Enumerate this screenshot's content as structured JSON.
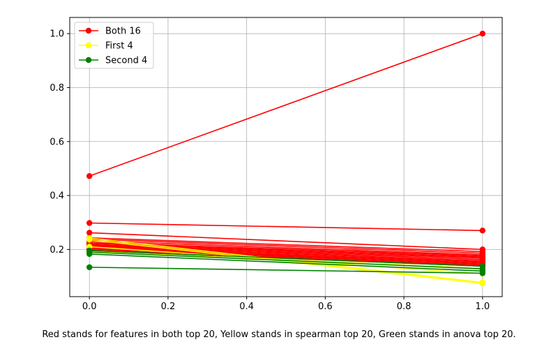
{
  "caption": "Red stands for features in both top 20, Yellow stands in spearman top 20, Green stands in anova top 20.",
  "chart_data": {
    "type": "line",
    "title": "",
    "xlabel": "",
    "ylabel": "",
    "xlim": [
      -0.05,
      1.05
    ],
    "ylim": [
      0.025,
      1.06
    ],
    "x": [
      0,
      1
    ],
    "grid": true,
    "legend_position": "top-left",
    "xticks": [
      "0.0",
      "0.2",
      "0.4",
      "0.6",
      "0.8",
      "1.0"
    ],
    "yticks": [
      "0.2",
      "0.4",
      "0.6",
      "0.8",
      "1.0"
    ],
    "legend": [
      {
        "label": "Both 16",
        "color": "#ff0000"
      },
      {
        "label": "First 4",
        "color": "#ffff00"
      },
      {
        "label": "Second 4",
        "color": "#008000"
      }
    ],
    "series": [
      {
        "group": "Both 16",
        "color": "#ff0000",
        "values": [
          0.472,
          1.0
        ]
      },
      {
        "group": "Both 16",
        "color": "#ff0000",
        "values": [
          0.298,
          0.27
        ]
      },
      {
        "group": "Both 16",
        "color": "#ff0000",
        "values": [
          0.262,
          0.2
        ]
      },
      {
        "group": "Both 16",
        "color": "#ff0000",
        "values": [
          0.243,
          0.192
        ]
      },
      {
        "group": "Both 16",
        "color": "#ff0000",
        "values": [
          0.238,
          0.186
        ]
      },
      {
        "group": "Both 16",
        "color": "#ff0000",
        "values": [
          0.232,
          0.18
        ]
      },
      {
        "group": "Both 16",
        "color": "#ff0000",
        "values": [
          0.226,
          0.176
        ]
      },
      {
        "group": "Both 16",
        "color": "#ff0000",
        "values": [
          0.222,
          0.172
        ]
      },
      {
        "group": "Both 16",
        "color": "#ff0000",
        "values": [
          0.218,
          0.168
        ]
      },
      {
        "group": "Both 16",
        "color": "#ff0000",
        "values": [
          0.215,
          0.163
        ]
      },
      {
        "group": "Both 16",
        "color": "#ff0000",
        "values": [
          0.212,
          0.158
        ]
      },
      {
        "group": "Both 16",
        "color": "#ff0000",
        "values": [
          0.208,
          0.154
        ]
      },
      {
        "group": "Both 16",
        "color": "#ff0000",
        "values": [
          0.205,
          0.15
        ]
      },
      {
        "group": "Both 16",
        "color": "#ff0000",
        "values": [
          0.202,
          0.146
        ]
      },
      {
        "group": "Both 16",
        "color": "#ff0000",
        "values": [
          0.198,
          0.142
        ]
      },
      {
        "group": "Both 16",
        "color": "#ff0000",
        "values": [
          0.195,
          0.138
        ]
      },
      {
        "group": "First 4",
        "color": "#ffff00",
        "values": [
          0.242,
          0.078
        ]
      },
      {
        "group": "First 4",
        "color": "#ffff00",
        "values": [
          0.236,
          0.074
        ]
      },
      {
        "group": "First 4",
        "color": "#ffff00",
        "values": [
          0.21,
          0.11
        ]
      },
      {
        "group": "First 4",
        "color": "#ffff00",
        "values": [
          0.192,
          0.13
        ]
      },
      {
        "group": "Second 4",
        "color": "#008000",
        "values": [
          0.196,
          0.138
        ]
      },
      {
        "group": "Second 4",
        "color": "#008000",
        "values": [
          0.19,
          0.128
        ]
      },
      {
        "group": "Second 4",
        "color": "#008000",
        "values": [
          0.183,
          0.12
        ]
      },
      {
        "group": "Second 4",
        "color": "#008000",
        "values": [
          0.134,
          0.112
        ]
      }
    ]
  }
}
